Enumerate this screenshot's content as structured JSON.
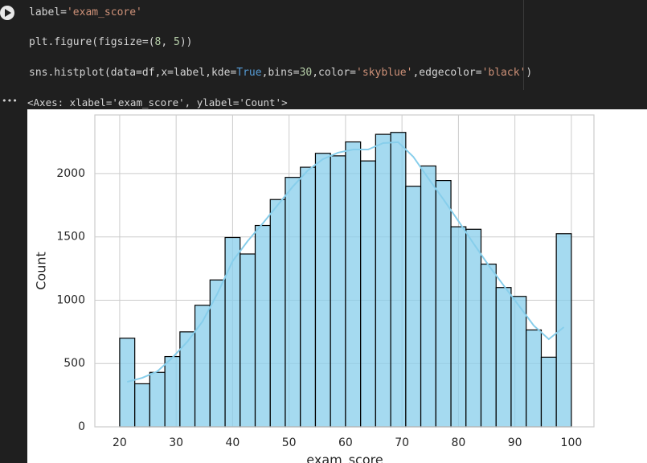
{
  "code": {
    "lines": [
      [
        {
          "text": "label=",
          "color": "#d4d4d4"
        },
        {
          "text": "'exam_score'",
          "color": "#ce9178"
        }
      ],
      [
        {
          "text": "plt.figure(figsize=(",
          "color": "#d4d4d4"
        },
        {
          "text": "8",
          "color": "#b5cea8"
        },
        {
          "text": ", ",
          "color": "#d4d4d4"
        },
        {
          "text": "5",
          "color": "#b5cea8"
        },
        {
          "text": "))",
          "color": "#d4d4d4"
        }
      ],
      [
        {
          "text": "sns.histplot(data=df,x=label,kde=",
          "color": "#d4d4d4"
        },
        {
          "text": "True",
          "color": "#569cd6"
        },
        {
          "text": ",bins=",
          "color": "#d4d4d4"
        },
        {
          "text": "30",
          "color": "#b5cea8"
        },
        {
          "text": ",color=",
          "color": "#d4d4d4"
        },
        {
          "text": "'skyblue'",
          "color": "#ce9178"
        },
        {
          "text": ",edgecolor=",
          "color": "#d4d4d4"
        },
        {
          "text": "'black'",
          "color": "#ce9178"
        },
        {
          "text": ")",
          "color": "#d4d4d4"
        }
      ]
    ]
  },
  "output": {
    "marker": "•••",
    "text": "<Axes: xlabel='exam_score', ylabel='Count'>"
  },
  "chart_data": {
    "type": "histogram",
    "xlabel": "exam_score",
    "ylabel": "Count",
    "bins": [
      20,
      22.67,
      25.33,
      28,
      30.67,
      33.33,
      36,
      38.67,
      41.33,
      44,
      46.67,
      49.33,
      52,
      54.67,
      57.33,
      60,
      62.67,
      65.33,
      68,
      70.67,
      73.33,
      76,
      78.67,
      81.33,
      84,
      86.67,
      89.33,
      92,
      94.67,
      97.33,
      100
    ],
    "counts": [
      700,
      340,
      430,
      555,
      750,
      960,
      1160,
      1495,
      1365,
      1590,
      1795,
      1970,
      2050,
      2160,
      2140,
      2250,
      2100,
      2310,
      2325,
      1900,
      2060,
      1945,
      1580,
      1560,
      1285,
      1100,
      1030,
      765,
      550,
      1525
    ],
    "color": "skyblue",
    "edgecolor": "black",
    "kde": {
      "color": "skyblue",
      "x": [
        21.33,
        24,
        26.67,
        29.33,
        32,
        34.67,
        37.33,
        40,
        42.67,
        45.33,
        48,
        50.67,
        53.33,
        56,
        58.67,
        61.33,
        64,
        66.67,
        69.33,
        72,
        74.67,
        77.33,
        80,
        82.67,
        85.33,
        88,
        90.67,
        93.33,
        96,
        98.67
      ],
      "values": [
        355,
        387,
        438,
        546,
        673,
        832,
        1054,
        1308,
        1467,
        1606,
        1752,
        1898,
        2025,
        2114,
        2165,
        2190,
        2190,
        2241,
        2248,
        2133,
        1962,
        1797,
        1625,
        1448,
        1276,
        1117,
        959,
        800,
        692,
        787
      ]
    },
    "xlim": [
      15.6,
      104
    ],
    "ylim": [
      0,
      2463
    ],
    "xticks": [
      20,
      30,
      40,
      50,
      60,
      70,
      80,
      90,
      100
    ],
    "yticks": [
      0,
      500,
      1000,
      1500,
      2000
    ],
    "grid": true
  }
}
